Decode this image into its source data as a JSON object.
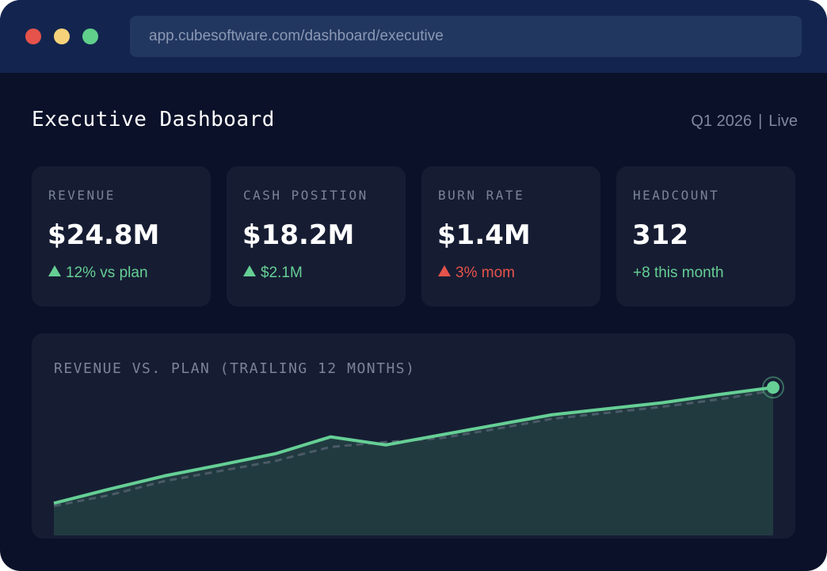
{
  "browser": {
    "url": "app.cubesoftware.com/dashboard/executive"
  },
  "header": {
    "title": "Executive Dashboard",
    "period": "Q1 2026",
    "separator": "|",
    "status": "Live"
  },
  "kpis": [
    {
      "label": "REVENUE",
      "value": "$24.8M",
      "delta": "12% vs plan",
      "trend": "up"
    },
    {
      "label": "CASH POSITION",
      "value": "$18.2M",
      "delta": "$2.1M",
      "trend": "up"
    },
    {
      "label": "BURN RATE",
      "value": "$1.4M",
      "delta": "3% mom",
      "trend": "down"
    },
    {
      "label": "HEADCOUNT",
      "value": "312",
      "delta": "+8 this month",
      "trend": "none"
    }
  ],
  "colors": {
    "positive": "#66cf95",
    "negative": "#e5534b",
    "plan_line": "#4a5a66",
    "area_fill": "#213a40"
  },
  "chart_data": {
    "type": "line",
    "title": "REVENUE VS. PLAN (TRAILING 12 MONTHS)",
    "x": [
      1,
      2,
      3,
      4,
      5,
      6,
      7,
      8,
      9,
      10,
      11,
      12,
      13,
      14
    ],
    "series": [
      {
        "values": [
          8.0,
          11.5,
          14.8,
          17.5,
          20.3,
          24.5,
          22.5,
          25.0,
          27.5,
          30.0,
          31.5,
          33.0,
          35.0,
          36.8
        ]
      },
      {
        "values": [
          7.3,
          10.0,
          13.5,
          16.0,
          18.5,
          22.0,
          23.2,
          24.2,
          26.5,
          29.0,
          30.5,
          32.0,
          33.8,
          36.0
        ]
      }
    ],
    "ylim": [
      0,
      40
    ],
    "grid": false,
    "legend": "none"
  }
}
